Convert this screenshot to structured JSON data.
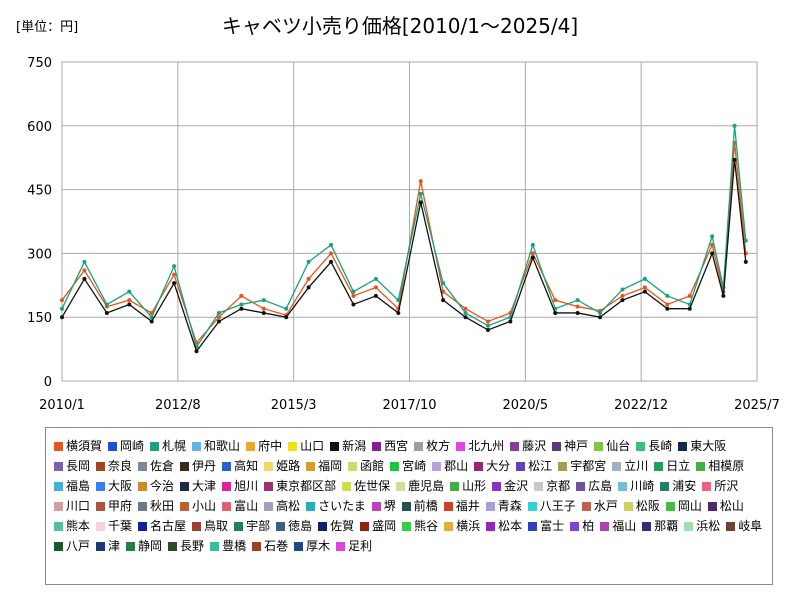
{
  "header": {
    "unit_label": "[単位：円]",
    "title": "キャベツ小売り価格[2010/1～2025/4]"
  },
  "chart_data": {
    "type": "line",
    "title": "キャベツ小売り価格[2010/1～2025/4]",
    "unit": "[単位：円]",
    "xlabel": "",
    "ylabel": "",
    "ylim": [
      0,
      750
    ],
    "yticks": [
      0,
      150,
      300,
      450,
      600,
      750
    ],
    "xlim": [
      "2010/1",
      "2025/7"
    ],
    "xticks": [
      "2010/1",
      "2012/8",
      "2015/3",
      "2017/10",
      "2020/5",
      "2022/12",
      "2025/7"
    ],
    "grid": true,
    "legend_position": "bottom",
    "x": [
      "2010/1",
      "2010/7",
      "2011/1",
      "2011/7",
      "2012/1",
      "2012/7",
      "2013/1",
      "2013/7",
      "2014/1",
      "2014/7",
      "2015/1",
      "2015/7",
      "2016/1",
      "2016/7",
      "2017/1",
      "2017/7",
      "2018/1",
      "2018/7",
      "2019/1",
      "2019/7",
      "2020/1",
      "2020/7",
      "2021/1",
      "2021/7",
      "2022/1",
      "2022/7",
      "2023/1",
      "2023/7",
      "2024/1",
      "2024/7",
      "2024/10",
      "2025/1",
      "2025/4"
    ],
    "series": [
      {
        "name": "横須賀",
        "values": [
          190,
          260,
          175,
          190,
          160,
          250,
          90,
          150,
          200,
          170,
          155,
          240,
          300,
          200,
          220,
          170,
          470,
          210,
          170,
          140,
          160,
          300,
          190,
          175,
          165,
          200,
          220,
          180,
          200,
          320,
          210,
          560,
          300
        ]
      },
      {
        "name": "札幌",
        "values": [
          170,
          280,
          180,
          210,
          150,
          270,
          80,
          160,
          180,
          190,
          170,
          280,
          320,
          210,
          240,
          190,
          440,
          230,
          160,
          130,
          150,
          320,
          170,
          190,
          160,
          215,
          240,
          200,
          180,
          340,
          220,
          600,
          330
        ]
      },
      {
        "name": "新潟",
        "values": [
          150,
          240,
          160,
          180,
          140,
          230,
          70,
          140,
          170,
          160,
          150,
          220,
          280,
          180,
          200,
          160,
          420,
          190,
          150,
          120,
          140,
          290,
          160,
          160,
          150,
          190,
          210,
          170,
          170,
          300,
          200,
          520,
          280
        ]
      }
    ],
    "legend": [
      "横須賀",
      "岡崎",
      "札幌",
      "和歌山",
      "府中",
      "山口",
      "新潟",
      "西宮",
      "枚方",
      "北九州",
      "藤沢",
      "神戸",
      "仙台",
      "長崎",
      "東大阪",
      "長岡",
      "奈良",
      "佐倉",
      "伊丹",
      "高知",
      "姫路",
      "福岡",
      "函館",
      "宮崎",
      "郡山",
      "大分",
      "松江",
      "宇都宮",
      "立川",
      "日立",
      "相模原",
      "福島",
      "大阪",
      "今治",
      "大津",
      "旭川",
      "東京都区部",
      "佐世保",
      "鹿児島",
      "山形",
      "金沢",
      "京都",
      "広島",
      "川崎",
      "浦安",
      "所沢",
      "川口",
      "甲府",
      "秋田",
      "小山",
      "富山",
      "高松",
      "さいたま",
      "堺",
      "前橋",
      "福井",
      "青森",
      "八王子",
      "水戸",
      "松阪",
      "岡山",
      "松山",
      "熊本",
      "千葉",
      "名古屋",
      "鳥取",
      "宇部",
      "徳島",
      "佐賀",
      "盛岡",
      "熊谷",
      "横浜",
      "松本",
      "富士",
      "柏",
      "福山",
      "那覇",
      "浜松",
      "岐阜",
      "八戸",
      "津",
      "静岡",
      "長野",
      "豊橋",
      "石巻",
      "厚木",
      "足利"
    ],
    "legend_colors": [
      "#e8541b",
      "#1a4fe0",
      "#18a27e",
      "#5cb8ec",
      "#f5a623",
      "#f2e114",
      "#111111",
      "#8b1a9a",
      "#9aa0a6",
      "#e643e6",
      "#8a3d9e",
      "#5b3b7a",
      "#7cc83a",
      "#35c27a",
      "#0d2a4a",
      "#7b5fb5",
      "#a0461c",
      "#7a8a9a",
      "#3a2a1a",
      "#2b5fd0",
      "#f0d860",
      "#d4a020",
      "#c4e060",
      "#19c93a",
      "#b8a0e0",
      "#a0207a",
      "#6040c0",
      "#a0a050",
      "#a0b0c8",
      "#20a060",
      "#40b040",
      "#40b0e0",
      "#3080ff",
      "#d08a20",
      "#1a2a4a",
      "#e020a0",
      "#a03070",
      "#d0e040",
      "#d0e090",
      "#40b040",
      "#9030c0",
      "#c8c8c8",
      "#7050a0",
      "#70c0d8",
      "#208070",
      "#f06080",
      "#d0a0a0",
      "#b05040",
      "#6a7a8a",
      "#c06030",
      "#e06070",
      "#a0a0c0",
      "#20b0c0",
      "#c040c0",
      "#205050",
      "#d04020",
      "#a0a0e0",
      "#30d0e0",
      "#c06050",
      "#d0d060",
      "#40c040",
      "#4a2a6a",
      "#50c0a0",
      "#f8d0e0",
      "#1020a0",
      "#a04030",
      "#208060",
      "#406080",
      "#102070",
      "#902010",
      "#30d040",
      "#e0b030",
      "#a020c0",
      "#3040c0",
      "#8040e0",
      "#b040b0",
      "#3a2a7a",
      "#a0e0b0",
      "#704030",
      "#1a5a2a",
      "#1a3a7a",
      "#208040",
      "#2a4a2a",
      "#30c0a0",
      "#a04020",
      "#1a4a8a",
      "#e040e0"
    ]
  }
}
